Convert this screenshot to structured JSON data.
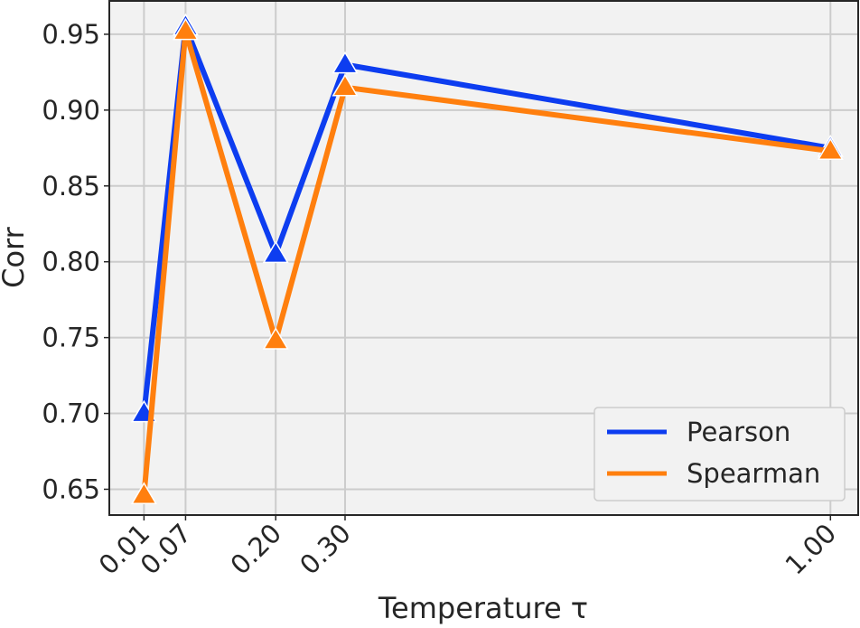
{
  "chart_data": {
    "type": "line",
    "title": "",
    "xlabel": "Temperature τ",
    "ylabel": "Corr",
    "x": [
      0.01,
      0.07,
      0.2,
      0.3,
      1.0
    ],
    "x_tick_labels": [
      "0.01",
      "0.07",
      "0.20",
      "0.30",
      "1.00"
    ],
    "y_ticks": [
      0.65,
      0.7,
      0.75,
      0.8,
      0.85,
      0.9,
      0.95
    ],
    "y_tick_labels": [
      "0.65",
      "0.70",
      "0.75",
      "0.80",
      "0.85",
      "0.90",
      "0.95"
    ],
    "xlim": [
      -0.04,
      1.04
    ],
    "ylim": [
      0.633,
      0.972
    ],
    "grid": true,
    "legend_position": "bottom-right",
    "series": [
      {
        "name": "Pearson",
        "color": "#0d3df0",
        "marker": "triangle-up",
        "values": [
          0.7,
          0.955,
          0.805,
          0.93,
          0.875
        ]
      },
      {
        "name": "Spearman",
        "color": "#ff7f0e",
        "marker": "triangle-up",
        "values": [
          0.646,
          0.952,
          0.748,
          0.915,
          0.873
        ]
      }
    ]
  }
}
